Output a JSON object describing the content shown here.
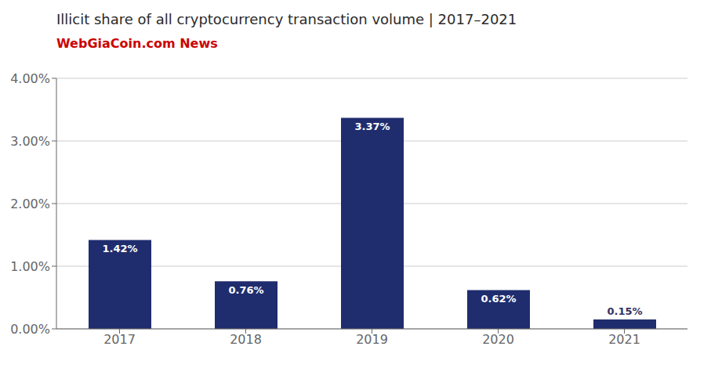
{
  "chart_data": {
    "type": "bar",
    "title": "Illicit share of all cryptocurrency transaction volume | 2017–2021",
    "annotations": [
      {
        "text": "WebGiaCoin.com News",
        "color": "#cc0000"
      }
    ],
    "categories": [
      "2017",
      "2018",
      "2019",
      "2020",
      "2021"
    ],
    "values": [
      1.42,
      0.76,
      3.37,
      0.62,
      0.15
    ],
    "value_labels": [
      "1.42%",
      "0.76%",
      "3.37%",
      "0.62%",
      "0.15%"
    ],
    "data_labels": true,
    "color": "#1f2d6e",
    "ylim": [
      0,
      4.0
    ],
    "yticks": [
      {
        "value": 0.0,
        "label": "0.00%"
      },
      {
        "value": 1.0,
        "label": "1.00%"
      },
      {
        "value": 2.0,
        "label": "2.00%"
      },
      {
        "value": 3.0,
        "label": "3.00%"
      },
      {
        "value": 4.0,
        "label": "4.00%"
      }
    ],
    "grid": true
  }
}
